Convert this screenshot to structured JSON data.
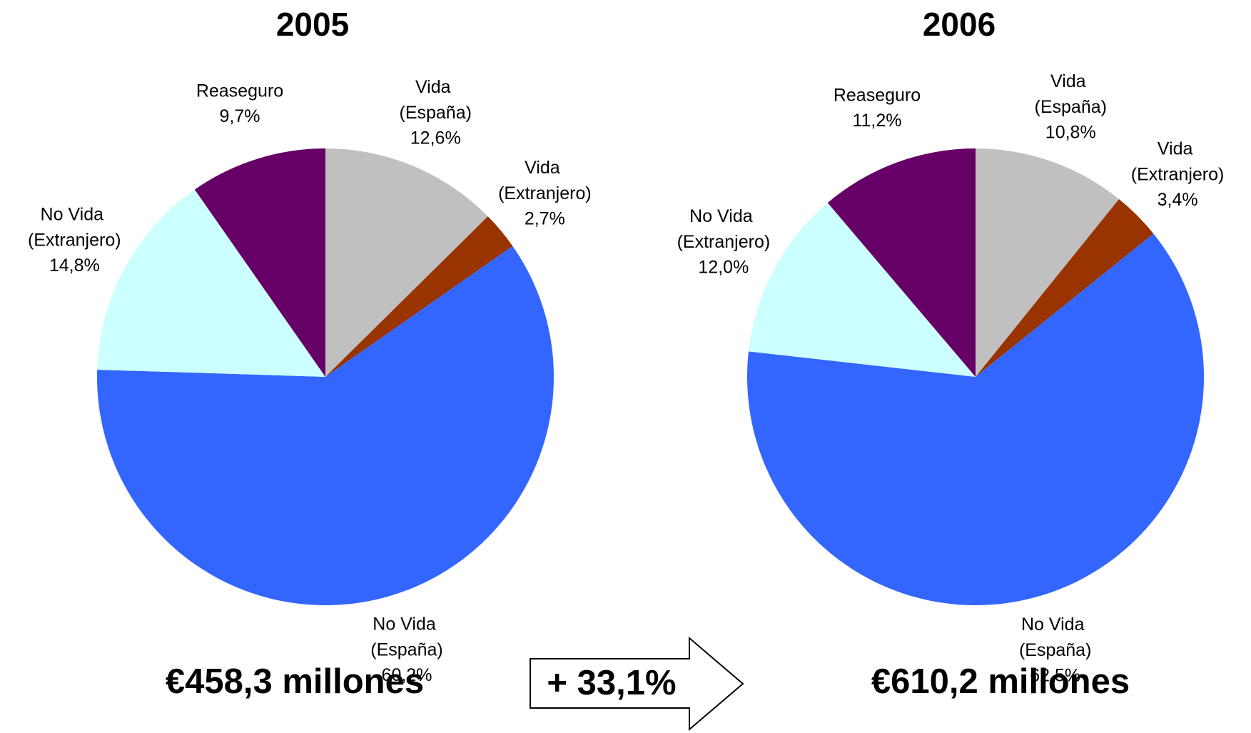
{
  "chart_data": [
    {
      "type": "pie",
      "title": "2005",
      "categories": [
        "Vida (España)",
        "Vida (Extranjero)",
        "No Vida (España)",
        "No Vida (Extranjero)",
        "Reaseguro"
      ],
      "values": [
        12.6,
        2.7,
        60.2,
        14.8,
        9.7
      ],
      "value_labels": [
        "12,6%",
        "2,7%",
        "60,2%",
        "14,8%",
        "9,7%"
      ],
      "colors": [
        "#c0c0c0",
        "#993300",
        "#3366ff",
        "#ccffff",
        "#660066"
      ],
      "annotation": "€458,3 millones"
    },
    {
      "type": "pie",
      "title": "2006",
      "categories": [
        "Vida (España)",
        "Vida (Extranjero)",
        "No Vida (España)",
        "No Vida (Extranjero)",
        "Reaseguro"
      ],
      "values": [
        10.8,
        3.4,
        62.5,
        12.0,
        11.2
      ],
      "value_labels": [
        "10,8%",
        "3,4%",
        "62,5%",
        "12,0%",
        "11,2%"
      ],
      "colors": [
        "#c0c0c0",
        "#993300",
        "#3366ff",
        "#ccffff",
        "#660066"
      ],
      "annotation": "€610,2 millones"
    }
  ],
  "growth": "+ 33,1%"
}
